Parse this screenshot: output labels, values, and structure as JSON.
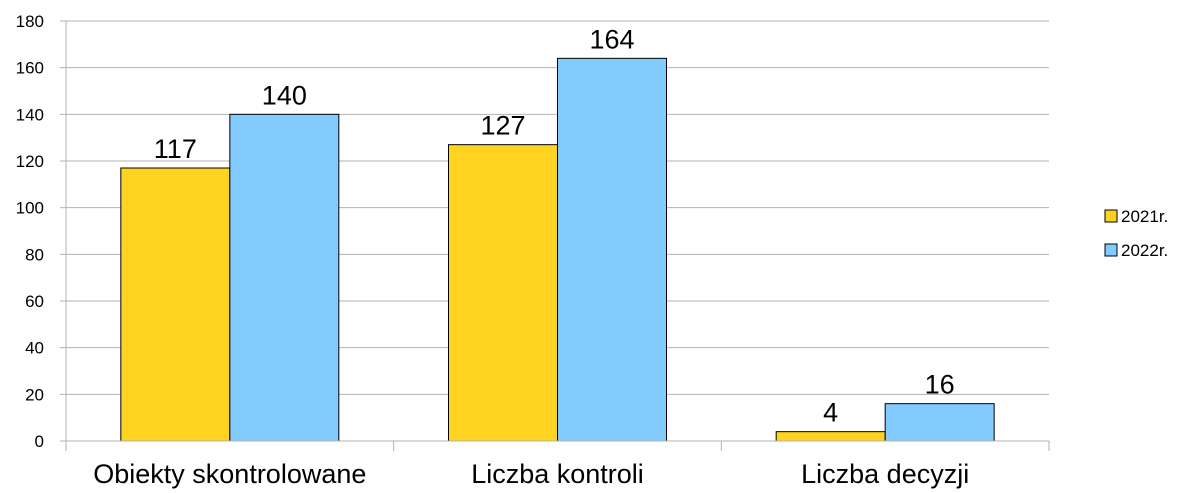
{
  "chart_data": {
    "type": "bar",
    "categories": [
      "Obiekty skontrolowane",
      "Liczba kontroli",
      "Liczba decyzji"
    ],
    "series": [
      {
        "name": "2021r.",
        "values": [
          117,
          127,
          4
        ],
        "color": "#FFD320"
      },
      {
        "name": "2022r.",
        "values": [
          140,
          164,
          16
        ],
        "color": "#83CAFF"
      }
    ],
    "yticks": [
      0,
      20,
      40,
      60,
      80,
      100,
      120,
      140,
      160,
      180
    ],
    "ylim": [
      0,
      180
    ],
    "grid": true,
    "legend_position": "right",
    "title": "",
    "xlabel": "",
    "ylabel": ""
  }
}
